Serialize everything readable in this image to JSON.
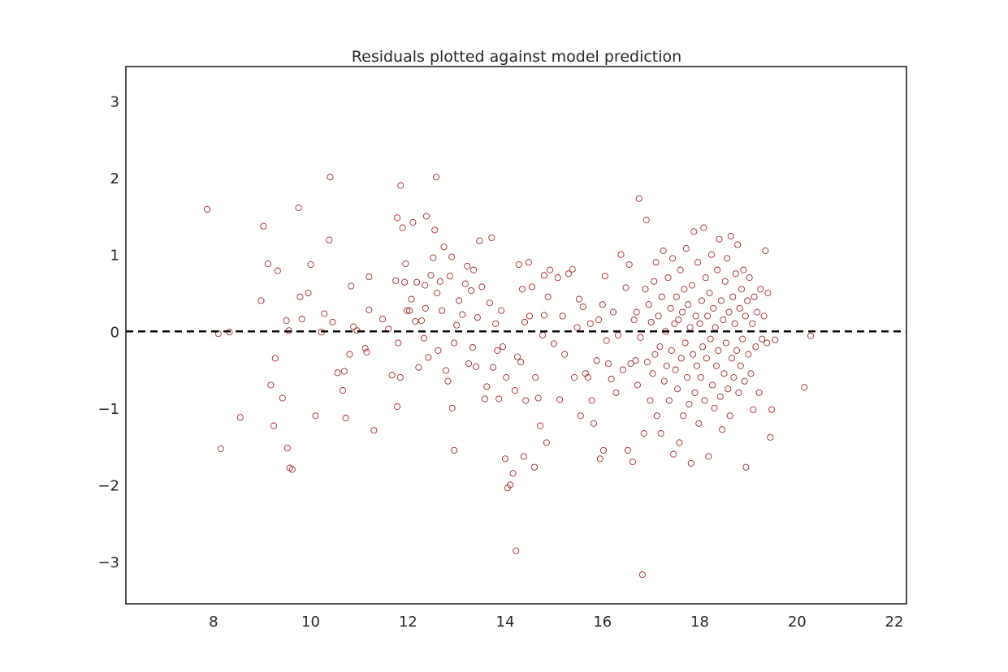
{
  "chart_data": {
    "type": "scatter",
    "title": "Residuals plotted against model prediction",
    "xlabel": "",
    "ylabel": "",
    "xlim": [
      6.2,
      22.25
    ],
    "ylim": [
      -3.55,
      3.45
    ],
    "xticks": [
      8,
      10,
      12,
      14,
      16,
      18,
      20,
      22
    ],
    "yticks": [
      3,
      2,
      1,
      0,
      -1,
      -2,
      -3
    ],
    "ytick_labels": [
      "3",
      "2",
      "1",
      "0",
      "−1",
      "−2",
      "−3"
    ],
    "grid": false,
    "legend": "none",
    "reference_line": {
      "y": 0,
      "style": "dashed",
      "color": "#000000"
    },
    "marker": {
      "shape": "open-circle",
      "color": "#a52a2a"
    },
    "points": [
      [
        7.87,
        1.59
      ],
      [
        8.1,
        -0.03
      ],
      [
        8.15,
        -1.53
      ],
      [
        8.33,
        -0.01
      ],
      [
        8.55,
        -1.12
      ],
      [
        8.98,
        0.4
      ],
      [
        9.03,
        1.37
      ],
      [
        9.12,
        0.88
      ],
      [
        9.18,
        -0.7
      ],
      [
        9.24,
        -1.23
      ],
      [
        9.27,
        -0.35
      ],
      [
        9.32,
        0.79
      ],
      [
        9.42,
        -0.87
      ],
      [
        9.5,
        0.14
      ],
      [
        9.52,
        -1.52
      ],
      [
        9.55,
        0.01
      ],
      [
        9.57,
        -1.78
      ],
      [
        9.62,
        -1.8
      ],
      [
        9.75,
        1.61
      ],
      [
        9.78,
        0.45
      ],
      [
        9.82,
        0.16
      ],
      [
        9.95,
        0.5
      ],
      [
        10.0,
        0.87
      ],
      [
        10.1,
        -1.1
      ],
      [
        10.22,
        -0.01
      ],
      [
        10.28,
        0.23
      ],
      [
        10.38,
        1.19
      ],
      [
        10.4,
        2.01
      ],
      [
        10.45,
        0.12
      ],
      [
        10.55,
        -0.54
      ],
      [
        10.66,
        -0.77
      ],
      [
        10.69,
        -0.52
      ],
      [
        10.72,
        -1.13
      ],
      [
        10.8,
        -0.3
      ],
      [
        10.83,
        0.59
      ],
      [
        10.88,
        0.06
      ],
      [
        10.95,
        0.01
      ],
      [
        11.12,
        -0.22
      ],
      [
        11.15,
        -0.27
      ],
      [
        11.2,
        0.28
      ],
      [
        11.2,
        0.71
      ],
      [
        11.3,
        -1.29
      ],
      [
        11.48,
        0.16
      ],
      [
        11.6,
        0.03
      ],
      [
        11.67,
        -0.57
      ],
      [
        11.75,
        0.66
      ],
      [
        11.78,
        1.48
      ],
      [
        11.78,
        -0.98
      ],
      [
        11.8,
        -0.15
      ],
      [
        11.84,
        -0.6
      ],
      [
        11.85,
        1.9
      ],
      [
        11.89,
        1.35
      ],
      [
        11.93,
        0.64
      ],
      [
        11.95,
        0.88
      ],
      [
        11.98,
        0.27
      ],
      [
        12.03,
        0.27
      ],
      [
        12.07,
        0.42
      ],
      [
        12.1,
        1.42
      ],
      [
        12.15,
        0.13
      ],
      [
        12.18,
        0.64
      ],
      [
        12.22,
        -0.47
      ],
      [
        12.28,
        0.14
      ],
      [
        12.33,
        -0.09
      ],
      [
        12.35,
        0.6
      ],
      [
        12.36,
        0.3
      ],
      [
        12.38,
        1.5
      ],
      [
        12.42,
        -0.34
      ],
      [
        12.47,
        0.73
      ],
      [
        12.52,
        0.96
      ],
      [
        12.55,
        1.32
      ],
      [
        12.58,
        2.01
      ],
      [
        12.6,
        0.5
      ],
      [
        12.62,
        -0.25
      ],
      [
        12.66,
        0.65
      ],
      [
        12.7,
        0.27
      ],
      [
        12.74,
        1.1
      ],
      [
        12.78,
        -0.51
      ],
      [
        12.82,
        -0.65
      ],
      [
        12.86,
        0.72
      ],
      [
        12.9,
        0.97
      ],
      [
        12.91,
        -1.0
      ],
      [
        12.95,
        -0.15
      ],
      [
        12.95,
        -1.55
      ],
      [
        13.0,
        0.08
      ],
      [
        13.05,
        0.4
      ],
      [
        13.12,
        0.22
      ],
      [
        13.18,
        0.62
      ],
      [
        13.22,
        0.85
      ],
      [
        13.25,
        -0.42
      ],
      [
        13.3,
        0.53
      ],
      [
        13.33,
        -0.21
      ],
      [
        13.35,
        0.8
      ],
      [
        13.4,
        -0.46
      ],
      [
        13.43,
        0.18
      ],
      [
        13.47,
        1.18
      ],
      [
        13.52,
        0.58
      ],
      [
        13.58,
        -0.88
      ],
      [
        13.62,
        -0.72
      ],
      [
        13.68,
        0.37
      ],
      [
        13.72,
        1.22
      ],
      [
        13.75,
        -0.47
      ],
      [
        13.8,
        0.1
      ],
      [
        13.84,
        -0.25
      ],
      [
        13.87,
        -0.88
      ],
      [
        13.92,
        0.27
      ],
      [
        13.95,
        -0.2
      ],
      [
        14.0,
        -1.66
      ],
      [
        14.02,
        -0.6
      ],
      [
        14.05,
        -2.04
      ],
      [
        14.1,
        -2.0
      ],
      [
        14.16,
        -1.85
      ],
      [
        14.2,
        -0.77
      ],
      [
        14.22,
        -2.86
      ],
      [
        14.25,
        -0.33
      ],
      [
        14.28,
        0.87
      ],
      [
        14.32,
        -0.4
      ],
      [
        14.35,
        0.55
      ],
      [
        14.38,
        -1.63
      ],
      [
        14.4,
        0.12
      ],
      [
        14.42,
        -0.9
      ],
      [
        14.48,
        0.9
      ],
      [
        14.5,
        0.2
      ],
      [
        14.55,
        0.58
      ],
      [
        14.6,
        -1.77
      ],
      [
        14.62,
        -0.6
      ],
      [
        14.68,
        -0.87
      ],
      [
        14.72,
        -1.23
      ],
      [
        14.77,
        -0.05
      ],
      [
        14.8,
        0.21
      ],
      [
        14.8,
        0.73
      ],
      [
        14.85,
        -1.45
      ],
      [
        14.88,
        0.45
      ],
      [
        14.92,
        0.8
      ],
      [
        15.0,
        -0.16
      ],
      [
        15.08,
        0.7
      ],
      [
        15.12,
        -0.89
      ],
      [
        15.18,
        0.2
      ],
      [
        15.22,
        -0.3
      ],
      [
        15.3,
        0.75
      ],
      [
        15.38,
        0.81
      ],
      [
        15.42,
        -0.6
      ],
      [
        15.48,
        0.05
      ],
      [
        15.52,
        0.42
      ],
      [
        15.55,
        -1.1
      ],
      [
        15.6,
        0.32
      ],
      [
        15.65,
        -0.55
      ],
      [
        15.7,
        -0.6
      ],
      [
        15.75,
        0.1
      ],
      [
        15.78,
        -0.9
      ],
      [
        15.82,
        -1.2
      ],
      [
        15.88,
        -0.38
      ],
      [
        15.92,
        0.15
      ],
      [
        15.95,
        -1.66
      ],
      [
        16.0,
        0.35
      ],
      [
        16.02,
        -1.55
      ],
      [
        16.05,
        0.72
      ],
      [
        16.08,
        -0.12
      ],
      [
        16.12,
        -0.42
      ],
      [
        16.18,
        -0.62
      ],
      [
        16.22,
        0.25
      ],
      [
        16.28,
        -0.8
      ],
      [
        16.32,
        -0.05
      ],
      [
        16.38,
        1.0
      ],
      [
        16.42,
        -0.5
      ],
      [
        16.48,
        0.57
      ],
      [
        16.52,
        -1.55
      ],
      [
        16.55,
        0.87
      ],
      [
        16.58,
        -0.42
      ],
      [
        16.62,
        -1.7
      ],
      [
        16.65,
        0.15
      ],
      [
        16.68,
        -0.38
      ],
      [
        16.7,
        0.25
      ],
      [
        16.72,
        -0.7
      ],
      [
        16.75,
        1.73
      ],
      [
        16.78,
        -0.08
      ],
      [
        16.82,
        -3.17
      ],
      [
        16.85,
        -1.33
      ],
      [
        16.88,
        0.55
      ],
      [
        16.9,
        1.45
      ],
      [
        16.92,
        -0.4
      ],
      [
        16.95,
        0.35
      ],
      [
        16.98,
        -0.9
      ],
      [
        17.0,
        0.12
      ],
      [
        17.03,
        -0.55
      ],
      [
        17.06,
        0.65
      ],
      [
        17.08,
        -0.3
      ],
      [
        17.1,
        0.9
      ],
      [
        17.12,
        -1.1
      ],
      [
        17.15,
        0.2
      ],
      [
        17.18,
        -0.2
      ],
      [
        17.2,
        -1.33
      ],
      [
        17.22,
        0.45
      ],
      [
        17.25,
        1.05
      ],
      [
        17.27,
        -0.65
      ],
      [
        17.3,
        0.0
      ],
      [
        17.32,
        -0.45
      ],
      [
        17.35,
        0.7
      ],
      [
        17.37,
        -0.9
      ],
      [
        17.4,
        0.3
      ],
      [
        17.42,
        -0.25
      ],
      [
        17.44,
        0.95
      ],
      [
        17.46,
        -1.6
      ],
      [
        17.48,
        0.1
      ],
      [
        17.5,
        -0.5
      ],
      [
        17.52,
        0.45
      ],
      [
        17.54,
        -0.75
      ],
      [
        17.56,
        0.15
      ],
      [
        17.58,
        -1.45
      ],
      [
        17.6,
        0.8
      ],
      [
        17.62,
        -0.35
      ],
      [
        17.64,
        0.25
      ],
      [
        17.66,
        -1.1
      ],
      [
        17.68,
        0.55
      ],
      [
        17.7,
        -0.15
      ],
      [
        17.72,
        1.08
      ],
      [
        17.74,
        -0.6
      ],
      [
        17.76,
        0.35
      ],
      [
        17.78,
        -0.95
      ],
      [
        17.8,
        0.05
      ],
      [
        17.82,
        -1.72
      ],
      [
        17.84,
        0.6
      ],
      [
        17.86,
        -0.3
      ],
      [
        17.88,
        1.3
      ],
      [
        17.9,
        -0.8
      ],
      [
        17.92,
        0.2
      ],
      [
        17.94,
        -0.45
      ],
      [
        17.96,
        0.9
      ],
      [
        17.98,
        -1.2
      ],
      [
        18.0,
        0.1
      ],
      [
        18.02,
        -0.6
      ],
      [
        18.04,
        0.4
      ],
      [
        18.06,
        -0.2
      ],
      [
        18.08,
        1.35
      ],
      [
        18.1,
        -0.9
      ],
      [
        18.12,
        0.7
      ],
      [
        18.14,
        -0.35
      ],
      [
        18.16,
        0.2
      ],
      [
        18.18,
        -1.63
      ],
      [
        18.2,
        0.5
      ],
      [
        18.22,
        -0.1
      ],
      [
        18.24,
        1.0
      ],
      [
        18.26,
        -0.7
      ],
      [
        18.28,
        0.3
      ],
      [
        18.3,
        -1.0
      ],
      [
        18.32,
        0.05
      ],
      [
        18.34,
        -0.45
      ],
      [
        18.36,
        0.8
      ],
      [
        18.38,
        -0.25
      ],
      [
        18.4,
        1.2
      ],
      [
        18.42,
        -0.85
      ],
      [
        18.44,
        0.4
      ],
      [
        18.46,
        -1.28
      ],
      [
        18.48,
        0.15
      ],
      [
        18.5,
        -0.55
      ],
      [
        18.52,
        0.65
      ],
      [
        18.54,
        -0.15
      ],
      [
        18.56,
        0.95
      ],
      [
        18.58,
        -0.75
      ],
      [
        18.6,
        0.25
      ],
      [
        18.62,
        -1.1
      ],
      [
        18.64,
        1.24
      ],
      [
        18.66,
        -0.35
      ],
      [
        18.68,
        0.45
      ],
      [
        18.7,
        -0.6
      ],
      [
        18.72,
        0.1
      ],
      [
        18.74,
        0.75
      ],
      [
        18.76,
        -0.25
      ],
      [
        18.78,
        1.13
      ],
      [
        18.8,
        -0.8
      ],
      [
        18.82,
        0.3
      ],
      [
        18.84,
        -0.45
      ],
      [
        18.86,
        0.55
      ],
      [
        18.88,
        -0.1
      ],
      [
        18.9,
        0.8
      ],
      [
        18.92,
        -0.65
      ],
      [
        18.94,
        0.2
      ],
      [
        18.95,
        -1.77
      ],
      [
        18.98,
        0.4
      ],
      [
        19.0,
        -0.3
      ],
      [
        19.02,
        0.7
      ],
      [
        19.05,
        -0.55
      ],
      [
        19.08,
        0.1
      ],
      [
        19.1,
        -1.02
      ],
      [
        19.12,
        0.45
      ],
      [
        19.15,
        -0.2
      ],
      [
        19.18,
        0.25
      ],
      [
        19.22,
        -0.8
      ],
      [
        19.25,
        0.55
      ],
      [
        19.28,
        -0.1
      ],
      [
        19.32,
        0.2
      ],
      [
        19.35,
        1.05
      ],
      [
        19.38,
        -0.15
      ],
      [
        19.4,
        0.5
      ],
      [
        19.45,
        -1.38
      ],
      [
        19.48,
        -1.02
      ],
      [
        19.55,
        -0.11
      ],
      [
        20.15,
        -0.73
      ],
      [
        20.28,
        -0.06
      ]
    ]
  }
}
